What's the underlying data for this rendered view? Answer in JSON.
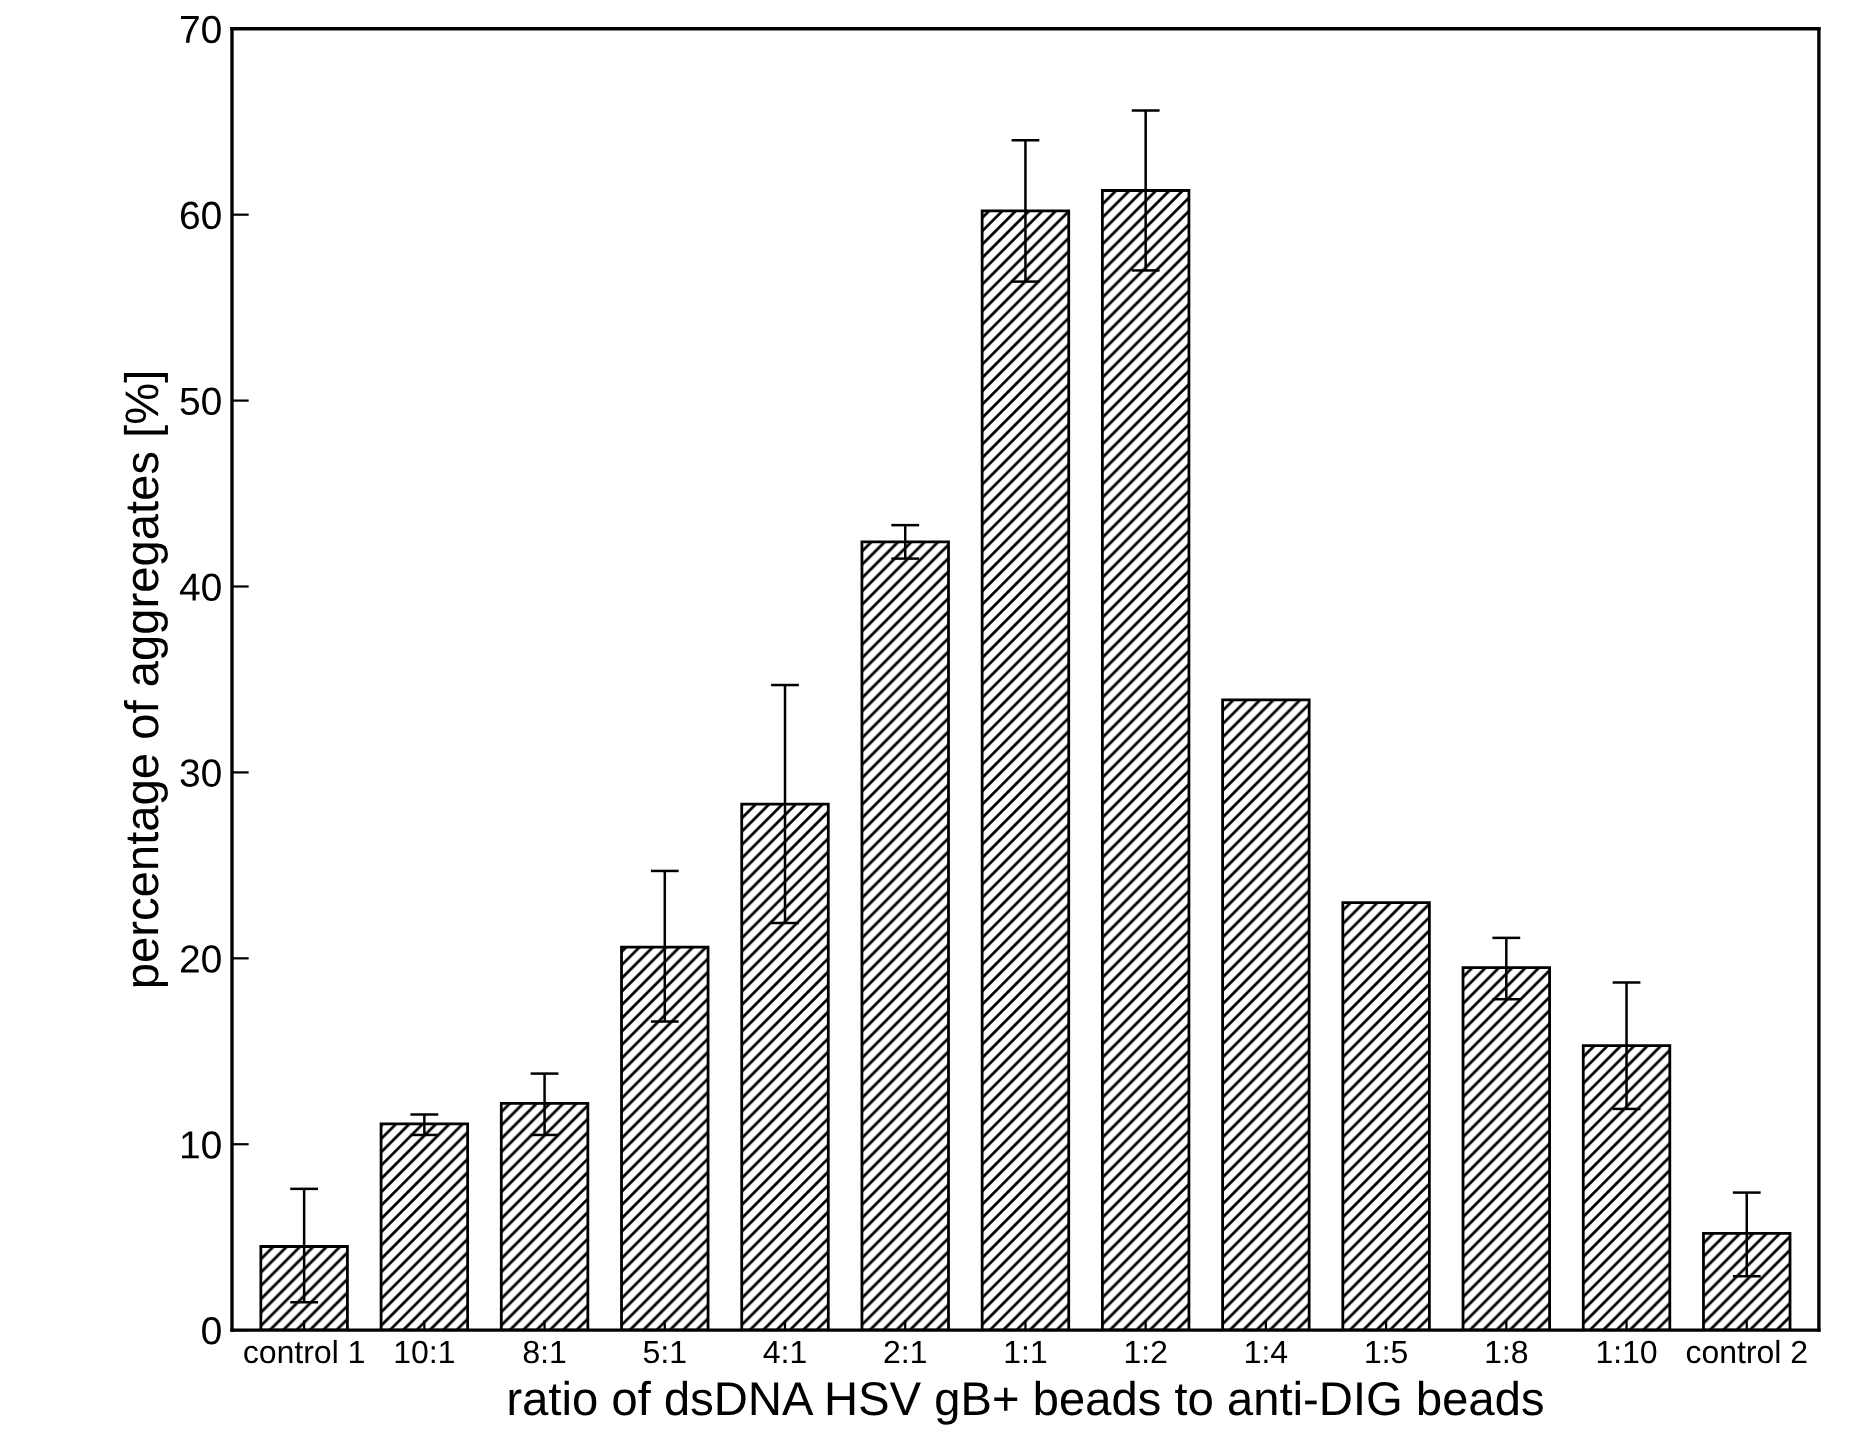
{
  "chart_data": {
    "type": "bar",
    "xlabel": "ratio of dsDNA HSV gB+ beads to anti-DIG beads",
    "ylabel": "percentage of aggregates [%]",
    "categories": [
      "control 1",
      "10:1",
      "8:1",
      "5:1",
      "4:1",
      "2:1",
      "1:1",
      "1:2",
      "1:4",
      "1:5",
      "1:8",
      "1:10",
      "control 2"
    ],
    "values": [
      4.5,
      11.1,
      12.2,
      20.6,
      28.3,
      42.4,
      60.2,
      61.3,
      33.9,
      23.0,
      19.5,
      15.3,
      5.2
    ],
    "errors": [
      [
        1.5,
        7.6
      ],
      [
        10.5,
        11.6
      ],
      [
        10.5,
        13.8
      ],
      [
        16.6,
        24.7
      ],
      [
        21.9,
        34.7
      ],
      [
        41.5,
        43.3
      ],
      [
        56.4,
        64.0
      ],
      [
        57.0,
        65.6
      ],
      null,
      null,
      [
        17.8,
        21.1
      ],
      [
        11.9,
        18.7
      ],
      [
        2.9,
        7.4
      ]
    ],
    "color": "#000000",
    "ylim": [
      0,
      70
    ],
    "yticks": [
      0,
      10,
      20,
      30,
      40,
      50,
      60,
      70
    ],
    "grid": false
  }
}
